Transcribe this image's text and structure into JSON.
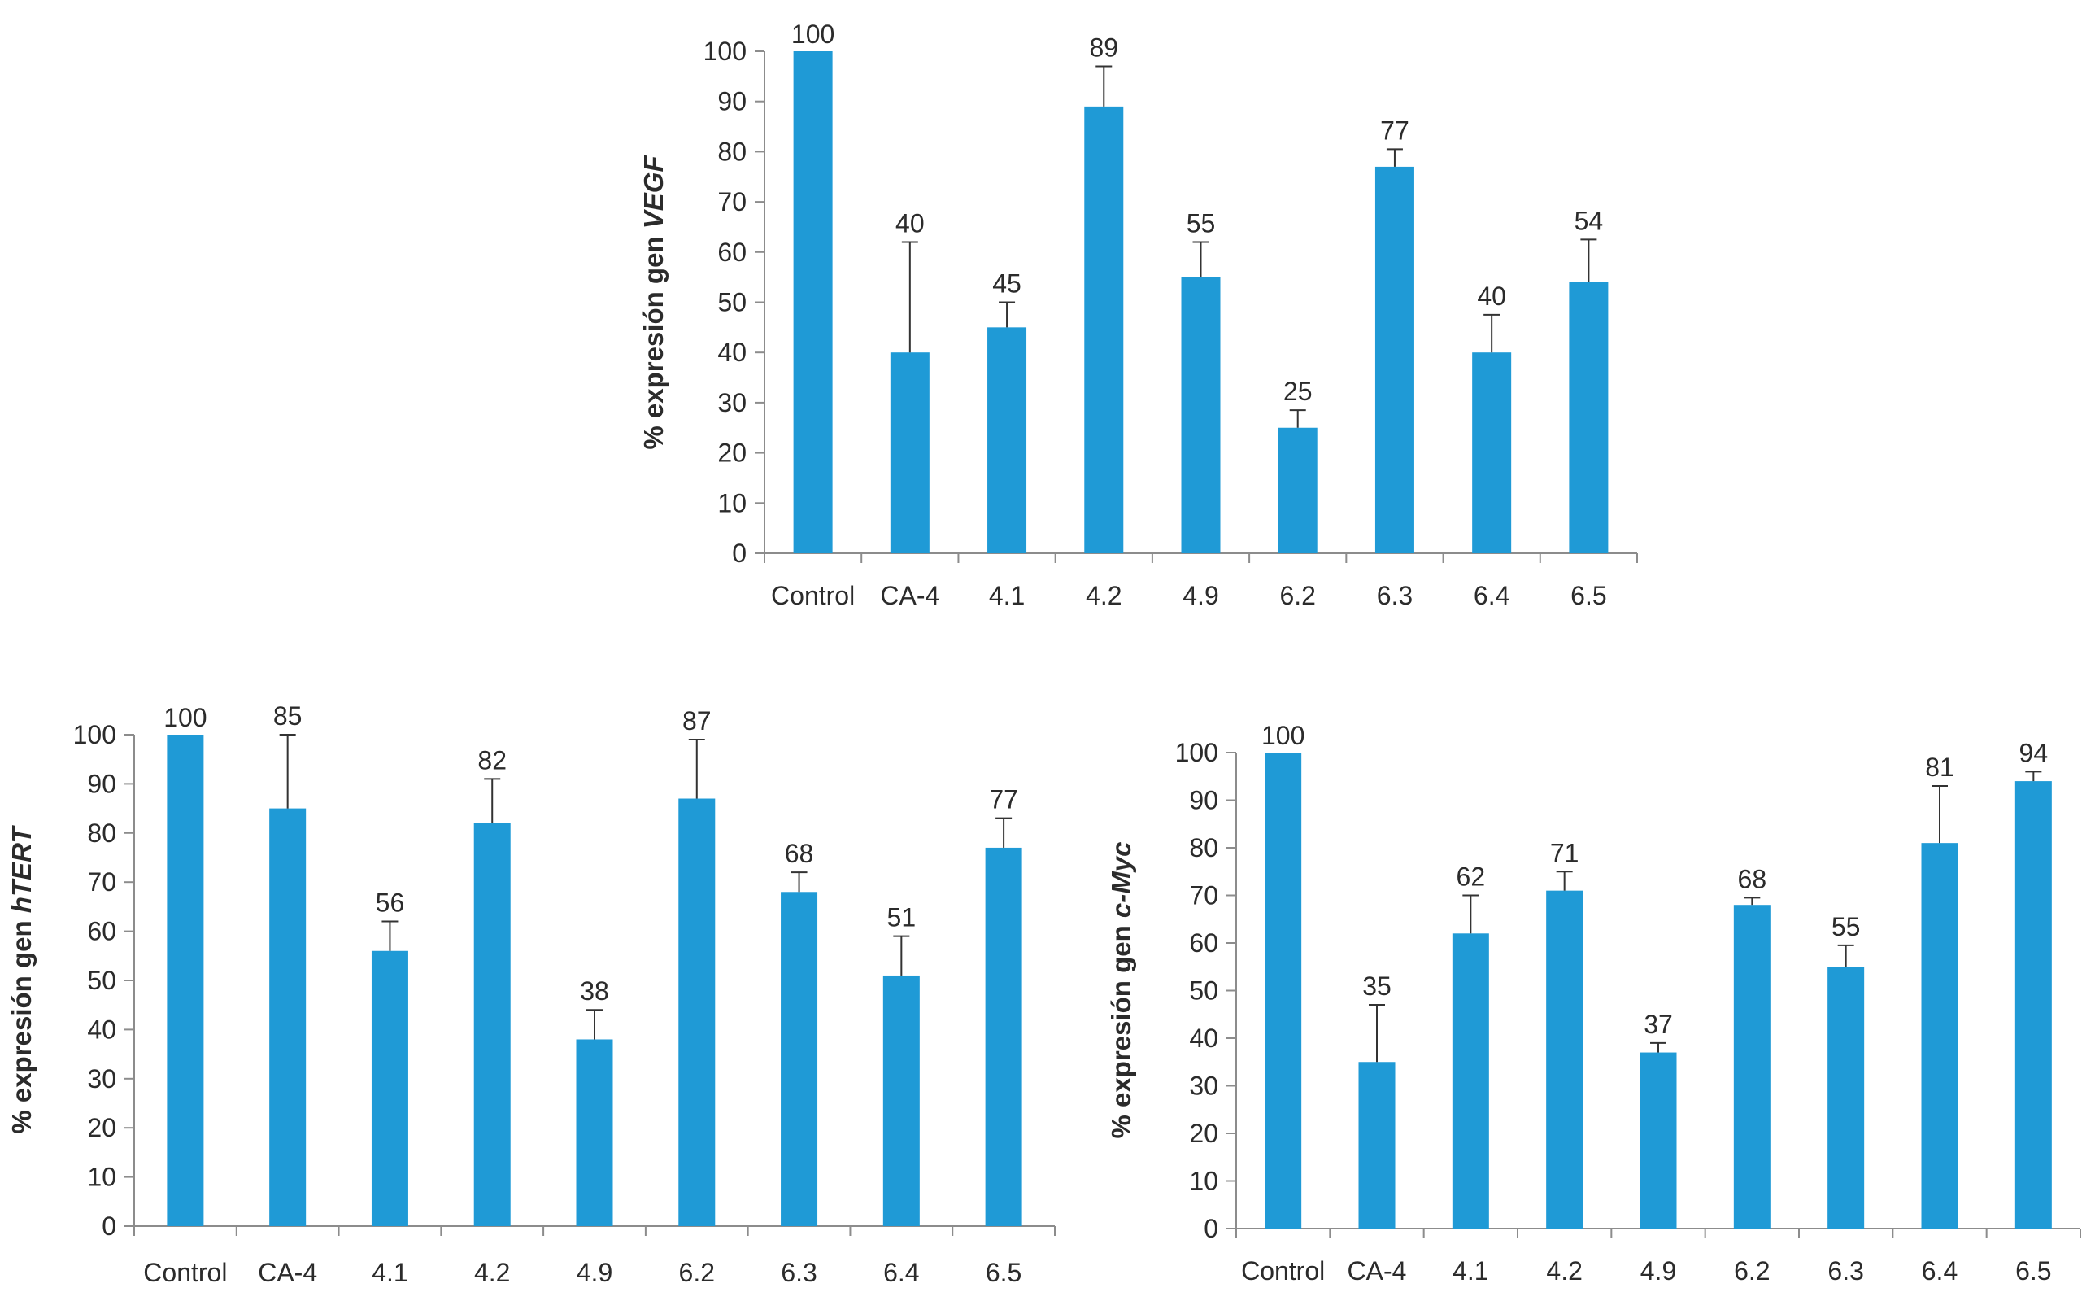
{
  "colors": {
    "bar": "#1f9ad6",
    "axis": "#8c8c8c",
    "text": "#2b2b2b",
    "errorbar": "#333333"
  },
  "chart_data": [
    {
      "type": "bar",
      "ylabel_prefix": "% expresión gen ",
      "ylabel_gene": "VEGF",
      "categories": [
        "Control",
        "CA-4",
        "4.1",
        "4.2",
        "4.9",
        "6.2",
        "6.3",
        "6.4",
        "6.5"
      ],
      "values": [
        100,
        40,
        45,
        89,
        55,
        25,
        77,
        40,
        54
      ],
      "value_labels": [
        "100",
        "40",
        "45",
        "89",
        "55",
        "25",
        "77",
        "40",
        "54"
      ],
      "error": [
        0,
        22,
        5,
        8,
        7,
        3.5,
        3.5,
        7.5,
        8.5
      ],
      "yticks": [
        "0",
        "10",
        "20",
        "30",
        "40",
        "50",
        "60",
        "70",
        "80",
        "90",
        "100"
      ],
      "ylim": [
        0,
        100
      ]
    },
    {
      "type": "bar",
      "ylabel_prefix": "% expresión gen ",
      "ylabel_gene": "hTERT",
      "categories": [
        "Control",
        "CA-4",
        "4.1",
        "4.2",
        "4.9",
        "6.2",
        "6.3",
        "6.4",
        "6.5"
      ],
      "values": [
        100,
        85,
        56,
        82,
        38,
        87,
        68,
        51,
        77
      ],
      "value_labels": [
        "100",
        "85",
        "56",
        "82",
        "38",
        "87",
        "68",
        "51",
        "77"
      ],
      "error": [
        0,
        15,
        6,
        9,
        6,
        12,
        4,
        8,
        6
      ],
      "yticks": [
        "0",
        "10",
        "20",
        "30",
        "40",
        "50",
        "60",
        "70",
        "80",
        "90",
        "100"
      ],
      "ylim": [
        0,
        100
      ]
    },
    {
      "type": "bar",
      "ylabel_prefix": "% expresión gen ",
      "ylabel_gene": "c-Myc",
      "categories": [
        "Control",
        "CA-4",
        "4.1",
        "4.2",
        "4.9",
        "6.2",
        "6.3",
        "6.4",
        "6.5"
      ],
      "values": [
        100,
        35,
        62,
        71,
        37,
        68,
        55,
        81,
        94
      ],
      "value_labels": [
        "100",
        "35",
        "62",
        "71",
        "37",
        "68",
        "55",
        "81",
        "94"
      ],
      "error": [
        0,
        12,
        8,
        4,
        2,
        1.5,
        4.5,
        12,
        2
      ],
      "yticks": [
        "0",
        "10",
        "20",
        "30",
        "40",
        "50",
        "60",
        "70",
        "80",
        "90",
        "100"
      ],
      "ylim": [
        0,
        100
      ]
    }
  ]
}
